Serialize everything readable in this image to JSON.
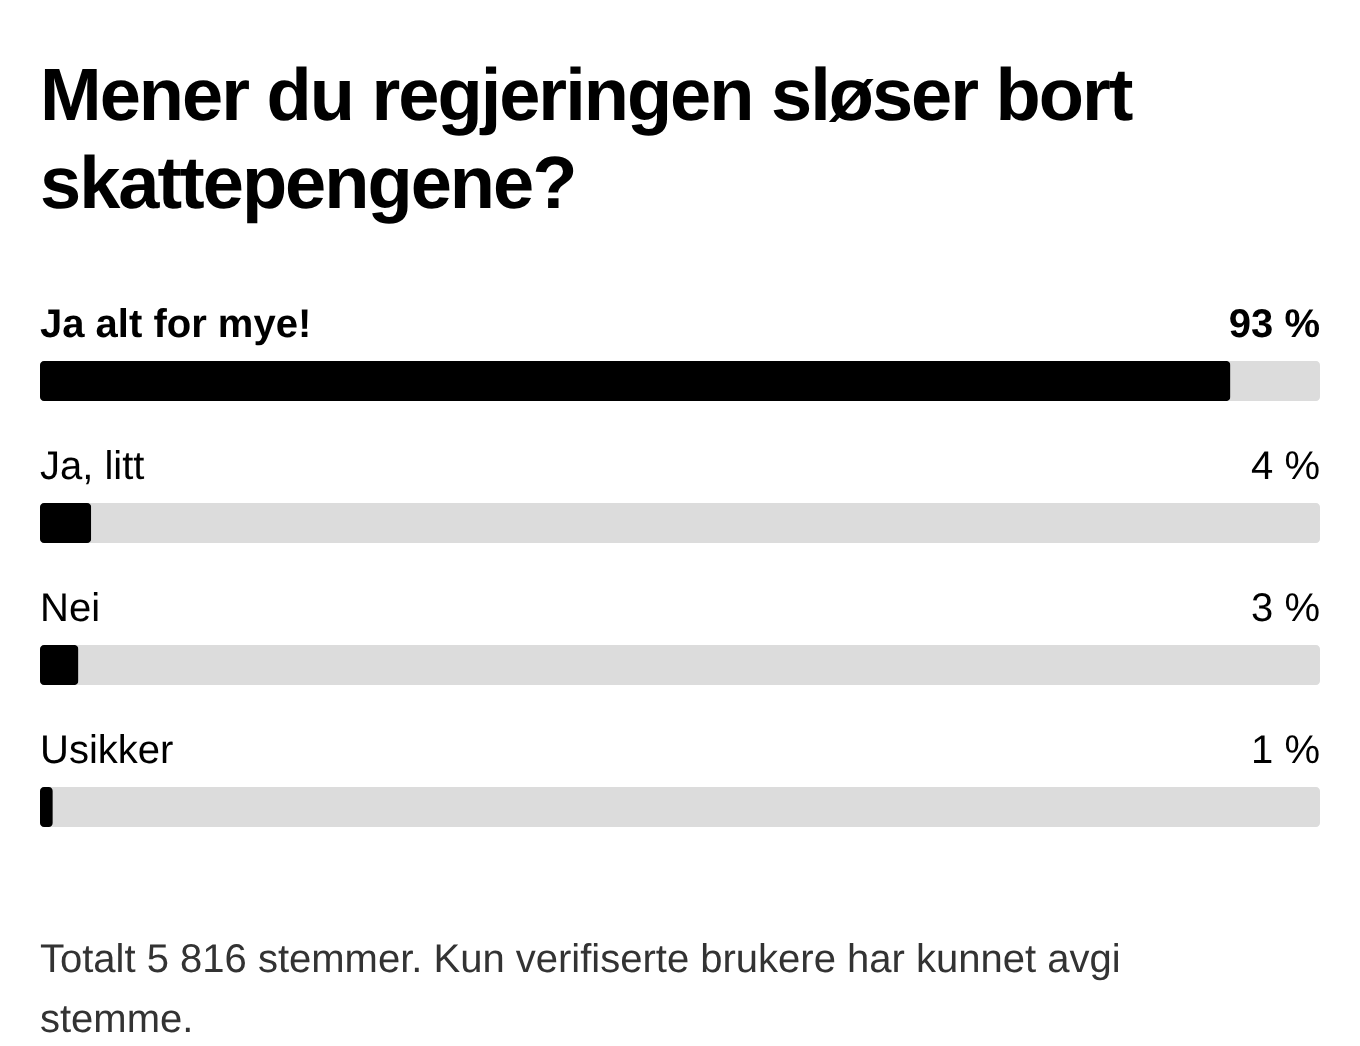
{
  "chart_data": {
    "type": "bar",
    "orientation": "horizontal",
    "title": "Mener du regjeringen sløser bort skattepengene?",
    "categories": [
      "Ja alt for mye!",
      "Ja, litt",
      "Nei",
      "Usikker"
    ],
    "values": [
      93,
      4,
      3,
      1
    ],
    "value_labels": [
      "93 %",
      "4 %",
      "3 %",
      "1 %"
    ],
    "color": "#000000",
    "xlim": [
      0,
      100
    ],
    "tick_labels": false,
    "annotations": [
      "Totalt 5 816 stemmer. Kun verifiserte brukere har kunnet avgi stemme."
    ]
  }
}
